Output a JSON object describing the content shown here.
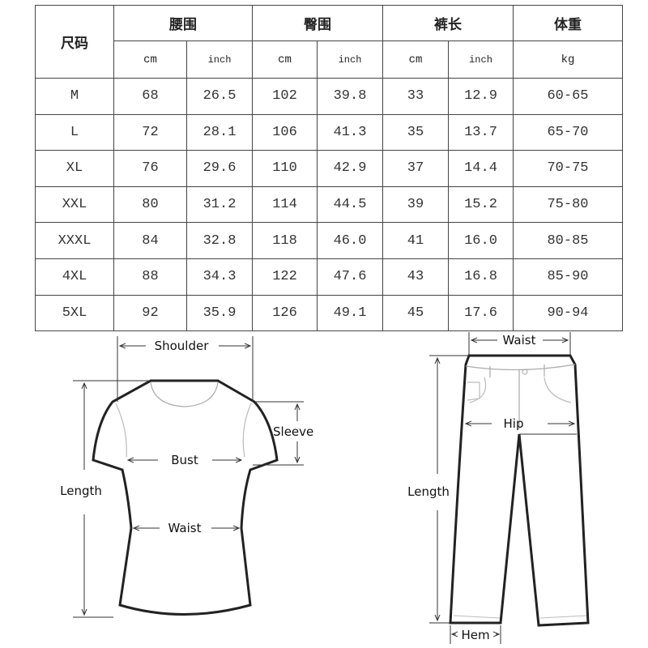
{
  "table": {
    "size_header": "尺码",
    "groups": [
      "腰围",
      "臀围",
      "裤长",
      "体重"
    ],
    "units": [
      "cm",
      "inch",
      "cm",
      "inch",
      "cm",
      "inch",
      "kg"
    ],
    "rows": [
      [
        "M",
        "68",
        "26.5",
        "102",
        "39.8",
        "33",
        "12.9",
        "60-65"
      ],
      [
        "L",
        "72",
        "28.1",
        "106",
        "41.3",
        "35",
        "13.7",
        "65-70"
      ],
      [
        "XL",
        "76",
        "29.6",
        "110",
        "42.9",
        "37",
        "14.4",
        "70-75"
      ],
      [
        "XXL",
        "80",
        "31.2",
        "114",
        "44.5",
        "39",
        "15.2",
        "75-80"
      ],
      [
        "XXXL",
        "84",
        "32.8",
        "118",
        "46.0",
        "41",
        "16.0",
        "80-85"
      ],
      [
        "4XL",
        "88",
        "34.3",
        "122",
        "47.6",
        "43",
        "16.8",
        "85-90"
      ],
      [
        "5XL",
        "92",
        "35.9",
        "126",
        "49.1",
        "45",
        "17.6",
        "90-94"
      ]
    ]
  },
  "tshirt_diagram": {
    "shoulder": "Shoulder",
    "sleeve": "Sleeve",
    "bust": "Bust",
    "length": "Length",
    "waist": "Waist"
  },
  "pants_diagram": {
    "waist": "Waist",
    "hip": "Hip",
    "length": "Length",
    "hem": "Hem"
  }
}
